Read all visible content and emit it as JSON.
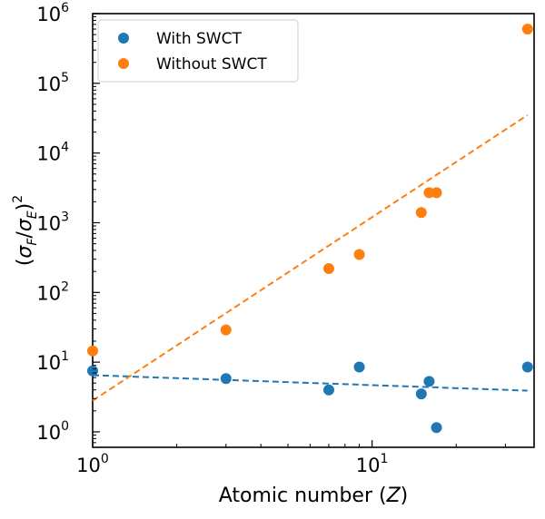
{
  "chart_data": {
    "type": "scatter",
    "xscale": "log",
    "yscale": "log",
    "xlim": [
      1,
      38
    ],
    "ylim": [
      0.6,
      1000000
    ],
    "xlabel_prefix": "Atomic number (",
    "xlabel_var": "Z",
    "xlabel_suffix": ")",
    "ylabel": "(σF/σE)^2",
    "x_ticks": [
      {
        "value": 1,
        "base": "10",
        "exp": "0"
      },
      {
        "value": 10,
        "base": "10",
        "exp": "1"
      }
    ],
    "y_ticks": [
      {
        "value": 1,
        "base": "10",
        "exp": "0"
      },
      {
        "value": 10,
        "base": "10",
        "exp": "1"
      },
      {
        "value": 100,
        "base": "10",
        "exp": "2"
      },
      {
        "value": 1000,
        "base": "10",
        "exp": "3"
      },
      {
        "value": 10000,
        "base": "10",
        "exp": "4"
      },
      {
        "value": 100000,
        "base": "10",
        "exp": "5"
      },
      {
        "value": 1000000,
        "base": "10",
        "exp": "6"
      }
    ],
    "grid": false,
    "legend_position": "top-left",
    "series": [
      {
        "name": "With SWCT",
        "color": "#1f77b4",
        "points": [
          {
            "x": 1,
            "y": 7.5
          },
          {
            "x": 3,
            "y": 5.8
          },
          {
            "x": 7,
            "y": 4.0
          },
          {
            "x": 9,
            "y": 8.5
          },
          {
            "x": 15,
            "y": 3.5
          },
          {
            "x": 16,
            "y": 5.3
          },
          {
            "x": 17,
            "y": 1.15
          },
          {
            "x": 36,
            "y": 8.5
          }
        ],
        "fit": [
          {
            "x": 1,
            "y": 6.5
          },
          {
            "x": 36,
            "y": 3.9
          }
        ]
      },
      {
        "name": "Without SWCT",
        "color": "#ff7f0e",
        "points": [
          {
            "x": 1,
            "y": 14.5
          },
          {
            "x": 3,
            "y": 29
          },
          {
            "x": 7,
            "y": 220
          },
          {
            "x": 9,
            "y": 350
          },
          {
            "x": 15,
            "y": 1400
          },
          {
            "x": 16,
            "y": 2700
          },
          {
            "x": 17,
            "y": 2700
          },
          {
            "x": 36,
            "y": 600000
          }
        ],
        "fit": [
          {
            "x": 1,
            "y": 2.8
          },
          {
            "x": 36,
            "y": 35000
          }
        ]
      }
    ]
  }
}
